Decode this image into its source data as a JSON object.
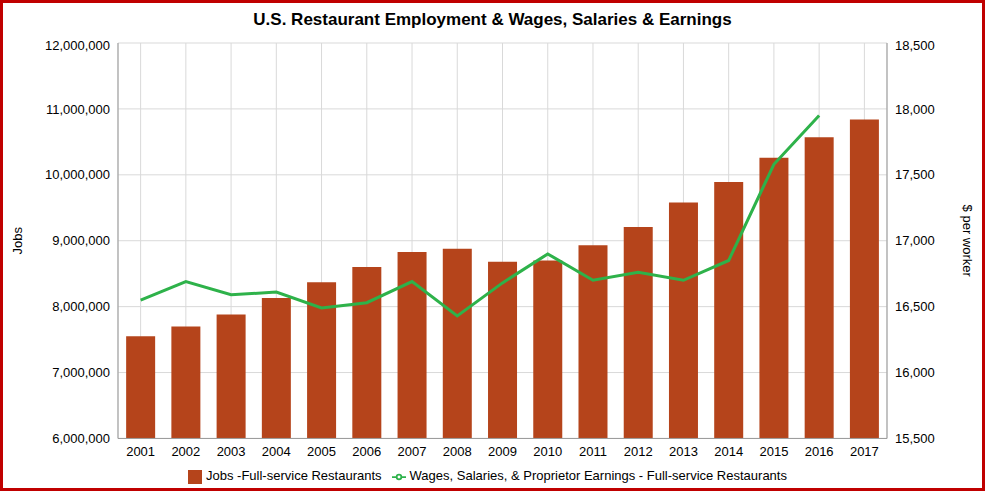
{
  "chart_data": {
    "type": "bar",
    "title": "U.S. Restaurant Employment & Wages, Salaries & Earnings",
    "y_label": "Jobs",
    "y2_label": "$ per worker",
    "categories": [
      "2001",
      "2002",
      "2003",
      "2004",
      "2005",
      "2006",
      "2007",
      "2008",
      "2009",
      "2010",
      "2011",
      "2012",
      "2013",
      "2014",
      "2015",
      "2016",
      "2017"
    ],
    "series": [
      {
        "name": "Jobs -Full-service Restaurants",
        "type": "bar",
        "color": "#b5441b",
        "values": [
          7550000,
          7700000,
          7880000,
          8130000,
          8370000,
          8600000,
          8830000,
          8880000,
          8680000,
          8700000,
          8930000,
          9210000,
          9580000,
          9890000,
          10260000,
          10570000,
          10840000
        ]
      },
      {
        "name": "Wages, Salaries, & Proprietor Earnings - Full-service Restaurants",
        "type": "line",
        "axis": "y2",
        "color": "#2eb24a",
        "values": [
          16550,
          16690,
          16590,
          16610,
          16490,
          16530,
          16690,
          16430,
          16680,
          16900,
          16700,
          16760,
          16700,
          16850,
          17580,
          17950,
          null
        ]
      }
    ],
    "ylim": [
      6000000,
      12000000
    ],
    "yticks": [
      {
        "value": 6000000,
        "label": "6,000,000"
      },
      {
        "value": 7000000,
        "label": "7,000,000"
      },
      {
        "value": 8000000,
        "label": "8,000,000"
      },
      {
        "value": 9000000,
        "label": "9,000,000"
      },
      {
        "value": 10000000,
        "label": "10,000,000"
      },
      {
        "value": 11000000,
        "label": "11,000,000"
      },
      {
        "value": 12000000,
        "label": "12,000,000"
      }
    ],
    "y2lim": [
      15500,
      18500
    ],
    "y2ticks": [
      {
        "value": 15500,
        "label": "15,500"
      },
      {
        "value": 16000,
        "label": "16,000"
      },
      {
        "value": 16500,
        "label": "16,500"
      },
      {
        "value": 17000,
        "label": "17,000"
      },
      {
        "value": 17500,
        "label": "17,500"
      },
      {
        "value": 18000,
        "label": "18,000"
      },
      {
        "value": 18500,
        "label": "18,500"
      }
    ],
    "grid": true,
    "legend": "bottom"
  }
}
